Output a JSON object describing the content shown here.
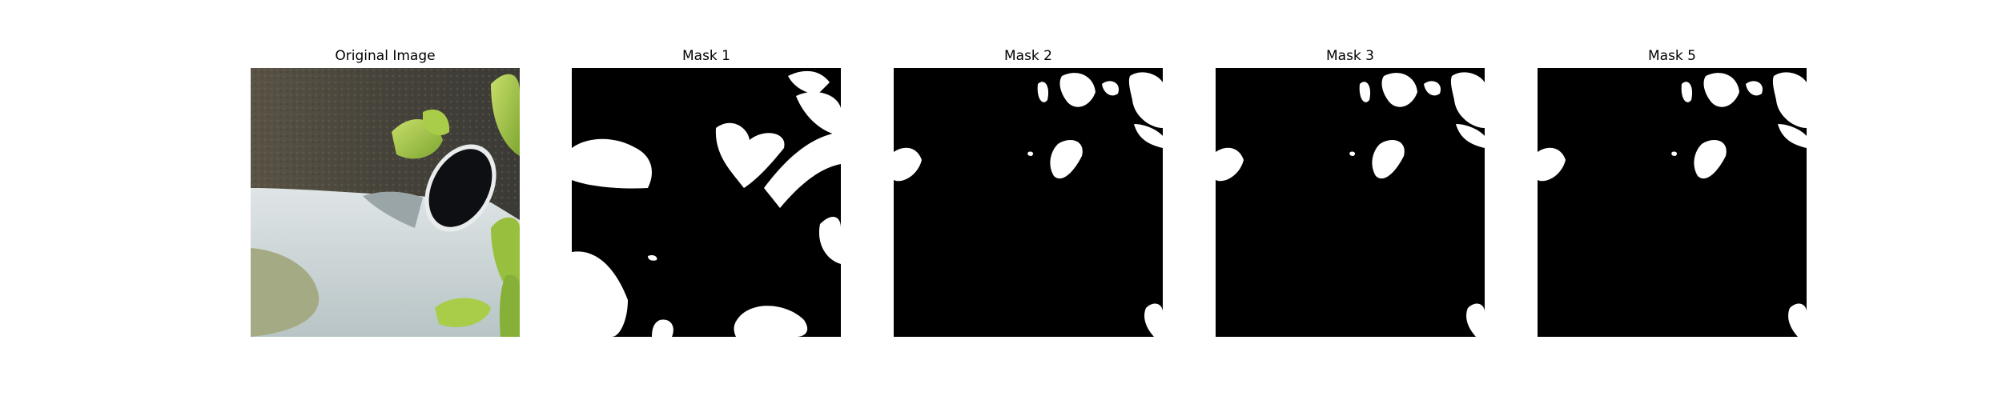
{
  "figure": {
    "panels": [
      {
        "title": "Original Image",
        "content": "photo of green succulent leaves beside a tilted dark circular object on a pale grey surface"
      },
      {
        "title": "Mask 1",
        "content": "binary segmentation mask"
      },
      {
        "title": "Mask 2",
        "content": "binary segmentation mask"
      },
      {
        "title": "Mask 3",
        "content": "binary segmentation mask"
      },
      {
        "title": "Mask 5",
        "content": "binary segmentation mask"
      }
    ]
  },
  "colors": {
    "mask_foreground": "#ffffff",
    "mask_background": "#000000",
    "leaf_green": "#a8c94a",
    "surface_grey": "#c9d2d4",
    "background_dark": "#4d4a40"
  }
}
